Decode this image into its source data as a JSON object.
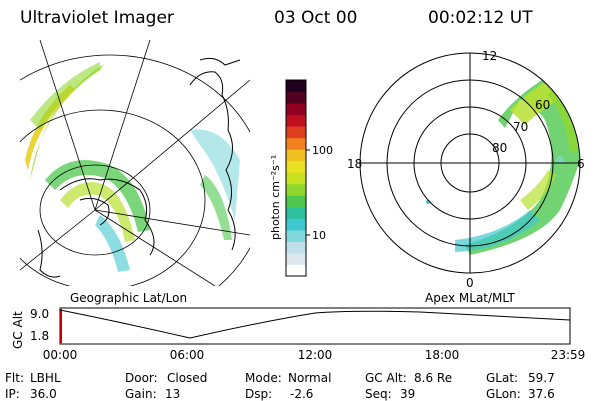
{
  "header": {
    "title": "Ultraviolet Imager",
    "date": "03 Oct 00",
    "time": "00:02:12 UT"
  },
  "colorbar": {
    "unit_label": "photon cm⁻²s⁻¹",
    "ticks": [
      "100",
      "10"
    ],
    "colors": [
      "#ffffff",
      "#dfe8ef",
      "#bfe0ea",
      "#7fd8dc",
      "#3fc8cf",
      "#2fc0a0",
      "#4fc84f",
      "#8fd830",
      "#c8e020",
      "#e8e020",
      "#f0c020",
      "#f08020",
      "#e04020",
      "#c01020",
      "#900020",
      "#500020",
      "#200020"
    ]
  },
  "left_panel": {
    "caption": "Geographic Lat/Lon"
  },
  "right_panel": {
    "caption": "Apex MLat/MLT",
    "mlt_labels": {
      "top": "12",
      "left": "18",
      "right": "6",
      "bottom": "0"
    },
    "lat_labels": [
      "60",
      "70",
      "80"
    ]
  },
  "altitude_plot": {
    "ylabel": "GC Alt",
    "y_ticks": [
      "9.0",
      "1.8"
    ],
    "x_ticks": [
      "00:00",
      "06:00",
      "12:00",
      "18:00",
      "23:59"
    ]
  },
  "footer": {
    "row1": [
      {
        "label": "Flt:",
        "value": "LBHL"
      },
      {
        "label": "Door:",
        "value": "Closed"
      },
      {
        "label": "Mode:",
        "value": "Normal"
      },
      {
        "label": "GC Alt:",
        "value": "8.6 Re"
      },
      {
        "label": "GLat:",
        "value": "59.7"
      }
    ],
    "row2": [
      {
        "label": "IP:",
        "value": "36.0"
      },
      {
        "label": "Gain:",
        "value": "13"
      },
      {
        "label": "Dsp:",
        "value": "-2.6"
      },
      {
        "label": "Seq:",
        "value": "39"
      },
      {
        "label": "GLon:",
        "value": "37.6"
      }
    ]
  }
}
